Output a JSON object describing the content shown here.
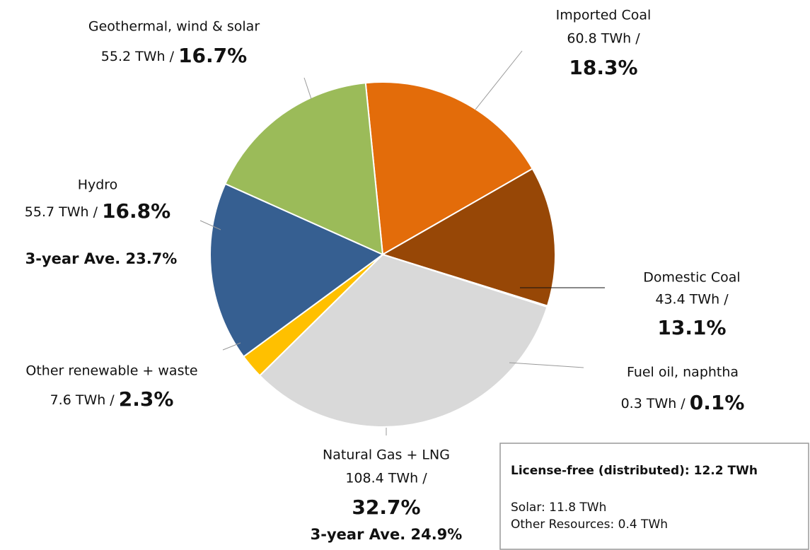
{
  "chart_data": {
    "type": "pie",
    "categories": [
      "Imported Coal",
      "Domestic Coal",
      "Fuel oil, naphtha",
      "Natural Gas + LNG",
      "Other renewable + waste",
      "Hydro",
      "Geothermal, wind & solar"
    ],
    "values": [
      18.3,
      13.1,
      0.1,
      32.7,
      2.3,
      16.8,
      16.7
    ],
    "value_labels": [
      "18.3%",
      "13.1%",
      "0.1%",
      "32.7%",
      "2.3%",
      "16.8%",
      "16.7%"
    ],
    "energy_labels": [
      "60.8 TWh /",
      "43.4 TWh /",
      "0.3 TWh /",
      "108.4 TWh /",
      "7.6 TWh /",
      "55.7 TWh /",
      "55.2 TWh /"
    ],
    "colors": [
      "#E36C0A",
      "#974706",
      "#111111",
      "#D9D9D9",
      "#FFC000",
      "#365F91",
      "#9BBB59"
    ],
    "annotations": [
      "3-year Ave. 23.7%",
      "3-year Ave. 24.9%"
    ],
    "note_box": {
      "title": "License-free (distributed): 12.2 TWh",
      "lines": [
        "Solar:  11.8 TWh",
        "Other Resources: 0.4 TWh"
      ]
    }
  }
}
